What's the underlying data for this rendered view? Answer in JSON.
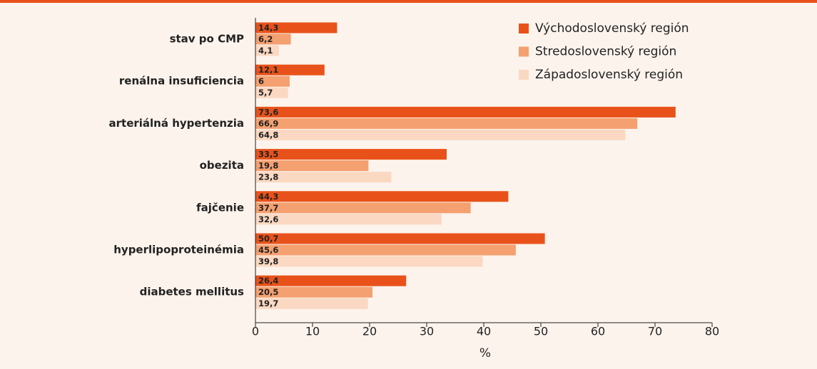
{
  "chart_data": {
    "type": "bar",
    "orientation": "horizontal",
    "x_label": "%",
    "categories": [
      "stav po CMP",
      "renálna insuficiencia",
      "arteriálná hypertenzia",
      "obezita",
      "fajčenie",
      "hyperlipoproteinémia",
      "diabetes mellitus"
    ],
    "series": [
      {
        "name": "Východoslovenský región",
        "color": "#e8521a",
        "values": [
          14.3,
          12.1,
          73.6,
          33.5,
          44.3,
          50.7,
          26.4
        ],
        "value_labels": [
          "14,3",
          "12,1",
          "73,6",
          "33,5",
          "44,3",
          "50,7",
          "26,4"
        ]
      },
      {
        "name": "Stredoslovenský región",
        "color": "#f4a070",
        "values": [
          6.2,
          6,
          66.9,
          19.8,
          37.7,
          45.6,
          20.5
        ],
        "value_labels": [
          "6,2",
          "6",
          "66,9",
          "19,8",
          "37,7",
          "45,6",
          "20,5"
        ]
      },
      {
        "name": "Západoslovenský región",
        "color": "#fad8c2",
        "values": [
          4.1,
          5.7,
          64.8,
          23.8,
          32.6,
          39.8,
          19.7
        ],
        "value_labels": [
          "4,1",
          "5,7",
          "64,8",
          "23,8",
          "32,6",
          "39,8",
          "19,7"
        ]
      }
    ],
    "xlim": [
      0,
      80
    ],
    "xticks": [
      0,
      10,
      20,
      30,
      40,
      50,
      60,
      70,
      80
    ],
    "legend": "top-right"
  }
}
